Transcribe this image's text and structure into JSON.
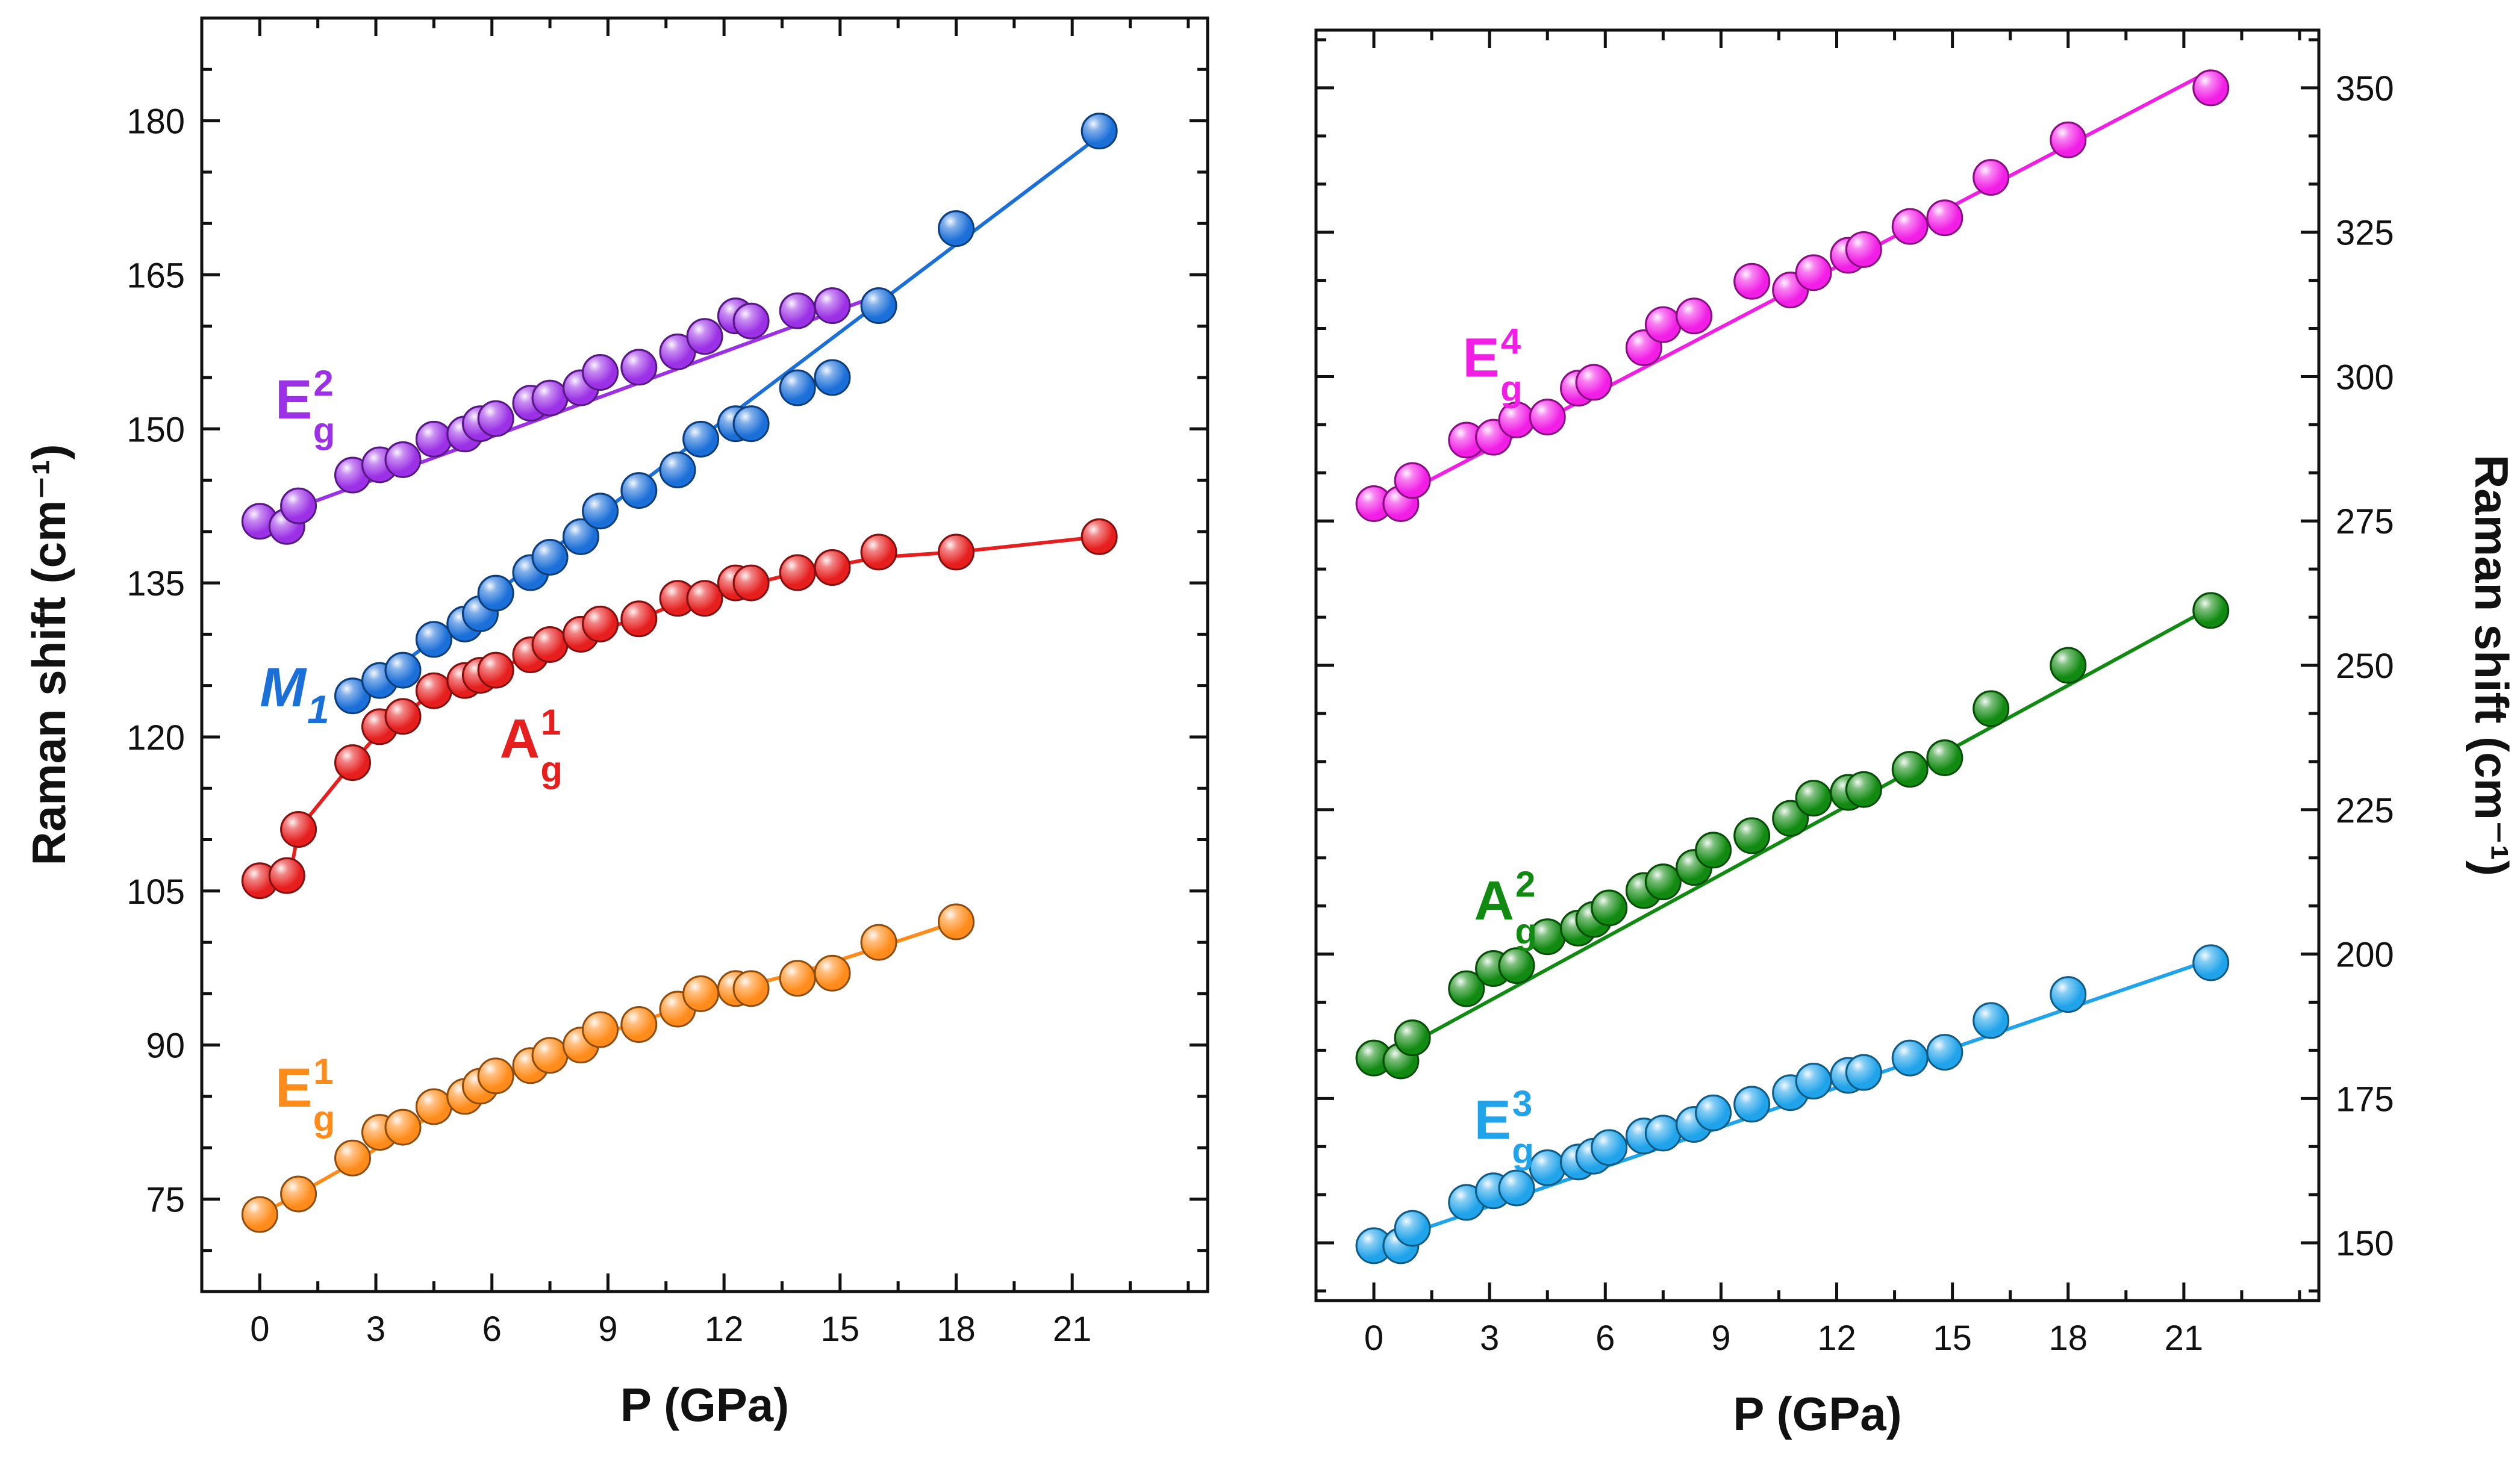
{
  "chart_data": [
    {
      "type": "scatter",
      "xlabel": "P (GPa)",
      "ylabel": "Raman shift (cm⁻¹)",
      "ylabel_side": "left",
      "xlim": [
        -1.5,
        24.5
      ],
      "ylim": [
        66,
        190
      ],
      "xticks": [
        0,
        3,
        6,
        9,
        12,
        15,
        18,
        21
      ],
      "yticks": [
        75,
        90,
        105,
        120,
        135,
        150,
        165,
        180
      ],
      "grid": false,
      "series": [
        {
          "color": "#9b30e6",
          "label": {
            "base": "E",
            "sub": "g",
            "sup": "2",
            "italic": false,
            "at": [
              0.4,
              151
            ]
          },
          "fit": [
            [
              0,
              141
            ],
            [
              16,
              163
            ]
          ],
          "x": [
            0,
            0.7,
            1,
            2.4,
            3.1,
            3.7,
            4.5,
            5.3,
            5.7,
            6.1,
            7,
            7.5,
            8.3,
            8.8,
            9.8,
            10.8,
            11.5,
            12.3,
            12.7,
            13.9,
            14.8
          ],
          "y": [
            141,
            140.5,
            142.5,
            145.5,
            146.5,
            147,
            149,
            149.5,
            150.5,
            151,
            152.5,
            153,
            154,
            155.5,
            156,
            157.5,
            159,
            161,
            160.5,
            161.5,
            162
          ]
        },
        {
          "color": "#1b6fd8",
          "label": {
            "base": "M",
            "sub": "1",
            "sup": "",
            "italic": true,
            "at": [
              0.0,
              123
            ]
          },
          "fit": [
            [
              2.4,
              123.5
            ],
            [
              21.7,
              178.5
            ]
          ],
          "x": [
            2.4,
            3.1,
            3.7,
            4.5,
            5.3,
            5.7,
            6.1,
            7,
            7.5,
            8.3,
            8.8,
            9.8,
            10.8,
            11.4,
            12.3,
            12.7,
            13.9,
            14.8,
            16,
            18,
            21.7
          ],
          "y": [
            124,
            125.5,
            126.5,
            129.5,
            131,
            132,
            134,
            136,
            137.5,
            139.5,
            142,
            144,
            146,
            149,
            150.5,
            150.5,
            154,
            155,
            162,
            169.5,
            179
          ]
        },
        {
          "color": "#e61e1e",
          "label": {
            "base": "A",
            "sub": "g",
            "sup": "1",
            "italic": false,
            "at": [
              6.2,
              118
            ]
          },
          "fit": [
            [
              0,
              106
            ],
            [
              0.8,
              106.8
            ],
            [
              1,
              111
            ],
            [
              2.4,
              117.5
            ],
            [
              3.1,
              120.5
            ],
            [
              3.7,
              122
            ],
            [
              4.5,
              124.5
            ],
            [
              5.3,
              125.5
            ],
            [
              6.1,
              126.5
            ],
            [
              7,
              128
            ],
            [
              8.3,
              130
            ],
            [
              9.8,
              131.5
            ],
            [
              10.8,
              133
            ],
            [
              12.3,
              134.5
            ],
            [
              13.9,
              136
            ],
            [
              16,
              137.5
            ],
            [
              18,
              138
            ],
            [
              21.7,
              139.5
            ]
          ],
          "x": [
            0,
            0.7,
            1,
            2.4,
            3.1,
            3.7,
            4.5,
            5.3,
            5.7,
            6.1,
            7,
            7.5,
            8.3,
            8.8,
            9.8,
            10.8,
            11.5,
            12.3,
            12.7,
            13.9,
            14.8,
            16,
            18,
            21.7
          ],
          "y": [
            106,
            106.5,
            111,
            117.5,
            121,
            122,
            124.5,
            125.5,
            126,
            126.5,
            128,
            129,
            130,
            131,
            131.5,
            133.5,
            133.5,
            135,
            135,
            136,
            136.5,
            138,
            138,
            139.5
          ]
        },
        {
          "color": "#ff8c1a",
          "label": {
            "base": "E",
            "sub": "g",
            "sup": "1",
            "italic": false,
            "at": [
              0.4,
              84
            ]
          },
          "fit": [
            [
              0,
              73.5
            ],
            [
              1,
              75.5
            ],
            [
              2.4,
              78.5
            ],
            [
              3.7,
              81.5
            ],
            [
              5.3,
              85
            ],
            [
              7,
              88
            ],
            [
              8.8,
              91
            ],
            [
              10.8,
              93.5
            ],
            [
              12.3,
              95.5
            ],
            [
              13.9,
              97
            ],
            [
              16,
              99.5
            ],
            [
              18,
              102
            ]
          ],
          "x": [
            0,
            1,
            2.4,
            3.1,
            3.7,
            4.5,
            5.3,
            5.7,
            6.1,
            7,
            7.5,
            8.3,
            8.8,
            9.8,
            10.8,
            11.4,
            12.3,
            12.7,
            13.9,
            14.8,
            16,
            18
          ],
          "y": [
            73.5,
            75.5,
            79,
            81.5,
            82,
            84,
            85,
            86,
            87,
            88,
            89,
            90,
            91.5,
            92,
            93.5,
            95,
            95.5,
            95.5,
            96.5,
            97,
            100,
            102
          ]
        }
      ]
    },
    {
      "type": "scatter",
      "xlabel": "P (GPa)",
      "ylabel": "Raman shift (cm⁻¹)",
      "ylabel_side": "right",
      "xlim": [
        -1.5,
        24.5
      ],
      "ylim": [
        140,
        360
      ],
      "xticks": [
        0,
        3,
        6,
        9,
        12,
        15,
        18,
        21
      ],
      "yticks": [
        150,
        175,
        200,
        225,
        250,
        275,
        300,
        325,
        350
      ],
      "grid": false,
      "series": [
        {
          "color": "#f21ee6",
          "label": {
            "base": "E",
            "sub": "g",
            "sup": "4",
            "italic": false,
            "at": [
              2.3,
              300
            ]
          },
          "fit": [
            [
              0,
              277
            ],
            [
              21.7,
              353
            ]
          ],
          "x": [
            0,
            0.7,
            1,
            2.4,
            3.1,
            3.7,
            4.5,
            5.3,
            5.7,
            7,
            7.5,
            8.3,
            9.8,
            10.8,
            11.4,
            12.3,
            12.7,
            13.9,
            14.8,
            16,
            18,
            21.7
          ],
          "y": [
            278,
            278,
            282,
            289,
            289.5,
            292.5,
            293,
            298,
            299,
            305,
            309,
            310.5,
            316.5,
            315,
            318,
            321,
            322,
            326,
            327.5,
            334.5,
            341,
            350
          ]
        },
        {
          "color": "#118a11",
          "label": {
            "base": "A",
            "sub": "g",
            "sup": "2",
            "italic": false,
            "at": [
              2.6,
              206
            ]
          },
          "fit": [
            [
              0,
              181
            ],
            [
              21.7,
              260
            ]
          ],
          "x": [
            0,
            0.7,
            1,
            2.4,
            3.1,
            3.7,
            4.5,
            5.3,
            5.7,
            6.1,
            7,
            7.5,
            8.3,
            8.8,
            9.8,
            10.8,
            11.4,
            12.3,
            12.7,
            13.9,
            14.8,
            16,
            18,
            21.7
          ],
          "y": [
            182,
            181.5,
            185.5,
            194,
            197.5,
            198,
            203,
            204.5,
            206,
            208,
            211,
            212.5,
            215,
            218,
            220.5,
            223.5,
            227,
            228,
            228.5,
            232,
            234,
            242.5,
            250,
            259.5
          ]
        },
        {
          "color": "#1fa3ea",
          "label": {
            "base": "E",
            "sub": "g",
            "sup": "3",
            "italic": false,
            "at": [
              2.6,
              168
            ]
          },
          "fit": [
            [
              0,
              149.5
            ],
            [
              21.7,
              199
            ]
          ],
          "x": [
            0,
            0.7,
            1,
            2.4,
            3.1,
            3.7,
            4.5,
            5.3,
            5.7,
            6.1,
            7,
            7.5,
            8.3,
            8.8,
            9.8,
            10.8,
            11.4,
            12.3,
            12.7,
            13.9,
            14.8,
            16,
            18,
            21.7
          ],
          "y": [
            149.5,
            149.5,
            152.5,
            157,
            159,
            159.5,
            163,
            164,
            165,
            166.5,
            168.5,
            169,
            170.5,
            172.5,
            174,
            176,
            178,
            179,
            179.5,
            182,
            183,
            188.5,
            193,
            198.5
          ]
        }
      ]
    }
  ]
}
